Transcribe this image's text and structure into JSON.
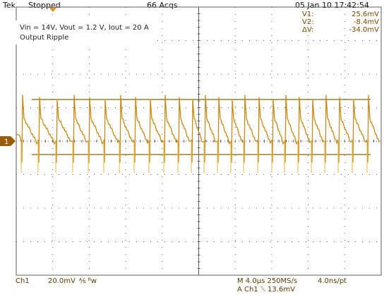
{
  "header": {
    "brand": "Tek",
    "run_state": "Stopped",
    "acquisitions": "66 Acqs",
    "datetime": "05 Jan 10 17:42:54"
  },
  "cursors": {
    "v1_label": "V1:",
    "v1_value": "25.6mV",
    "v2_label": "V2:",
    "v2_value": "-8.4mV",
    "dv_label": "ΔV:",
    "dv_value": "-34.0mV"
  },
  "annotation": {
    "line1": "Vin = 14V, Vout = 1.2 V, Iout = 20 A",
    "line2": "Output Ripple"
  },
  "channel_marker": {
    "label": "1"
  },
  "footer": {
    "channel": "Ch1",
    "volts_per_div": "20.0mV",
    "coupling_symbols": "⅍ ᴮw",
    "timebase": "M 4.0µs 250MS/s",
    "record": "4.0ns/pt",
    "trigger": "A  Ch1  ⟍  13.6mV"
  },
  "colors": {
    "trace": "#c68a16",
    "trace_bright": "#e8c45a",
    "grid": "#5e5e5e",
    "cursor_line": "#8a6000",
    "text_dark": "#5a3a00",
    "trigger_mark": "#d9932f"
  }
}
